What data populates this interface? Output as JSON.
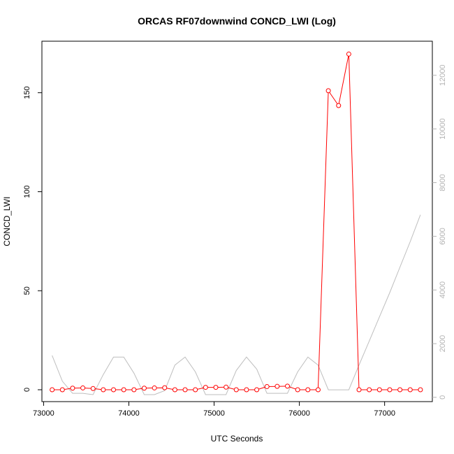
{
  "chart_data": {
    "type": "line",
    "title": "ORCAS RF07downwind CONCD_LWI (Log)",
    "xlabel": "UTC Seconds",
    "ylabel": "CONCD_LWI",
    "xlim": [
      72980,
      77560
    ],
    "ylim": [
      -6,
      176
    ],
    "y2lim": [
      -160,
      13270
    ],
    "x_ticks": [
      73000,
      74000,
      75000,
      76000,
      77000
    ],
    "y_ticks": [
      0,
      50,
      100,
      150
    ],
    "y2_ticks": [
      0,
      2000,
      4000,
      6000,
      8000,
      10000,
      12000
    ],
    "x_tick_labels": [
      "73000",
      "74000",
      "75000",
      "76000",
      "77000"
    ],
    "y_tick_labels": [
      "0",
      "50",
      "100",
      "150"
    ],
    "y2_tick_labels": [
      "0",
      "2000",
      "4000",
      "6000",
      "8000",
      "10000",
      "12000"
    ],
    "series": [
      {
        "axis": "left",
        "color": "#ff0000",
        "style": "line+points",
        "x": [
          73100,
          73220,
          73340,
          73460,
          73580,
          73700,
          73820,
          73940,
          74060,
          74180,
          74300,
          74420,
          74540,
          74660,
          74780,
          74900,
          75020,
          75140,
          75260,
          75380,
          75500,
          75620,
          75740,
          75860,
          75980,
          76100,
          76220,
          76340,
          76460,
          76580,
          76700,
          76820,
          76940,
          77060,
          77180,
          77300,
          77420
        ],
        "values": [
          0,
          0,
          0.8,
          0.9,
          0.6,
          0,
          0,
          0,
          0,
          0.8,
          0.9,
          1.0,
          0,
          0,
          0,
          1.2,
          1.2,
          1.3,
          0,
          0,
          0,
          1.6,
          1.7,
          1.8,
          0,
          0,
          0,
          151,
          143.5,
          169.5,
          0,
          0,
          0,
          0,
          0,
          0,
          0
        ]
      },
      {
        "axis": "right",
        "color": "#bebebe",
        "style": "line",
        "x": [
          73100,
          73220,
          73340,
          73460,
          73580,
          73700,
          73820,
          73940,
          74060,
          74180,
          74300,
          74420,
          74540,
          74660,
          74780,
          74900,
          75020,
          75140,
          75260,
          75380,
          75500,
          75620,
          75740,
          75860,
          75980,
          76100,
          76220,
          76340,
          76460,
          76580,
          76700,
          76820,
          76940,
          77060,
          77180,
          77300,
          77420
        ],
        "values": [
          1560,
          600,
          150,
          150,
          100,
          850,
          1500,
          1500,
          900,
          100,
          100,
          250,
          1200,
          1500,
          950,
          100,
          100,
          100,
          1000,
          1500,
          1050,
          150,
          150,
          150,
          950,
          1500,
          1200,
          280,
          280,
          280,
          1200,
          2100,
          3000,
          3900,
          4850,
          5800,
          6800
        ]
      }
    ],
    "grid": false,
    "legend": "none"
  }
}
